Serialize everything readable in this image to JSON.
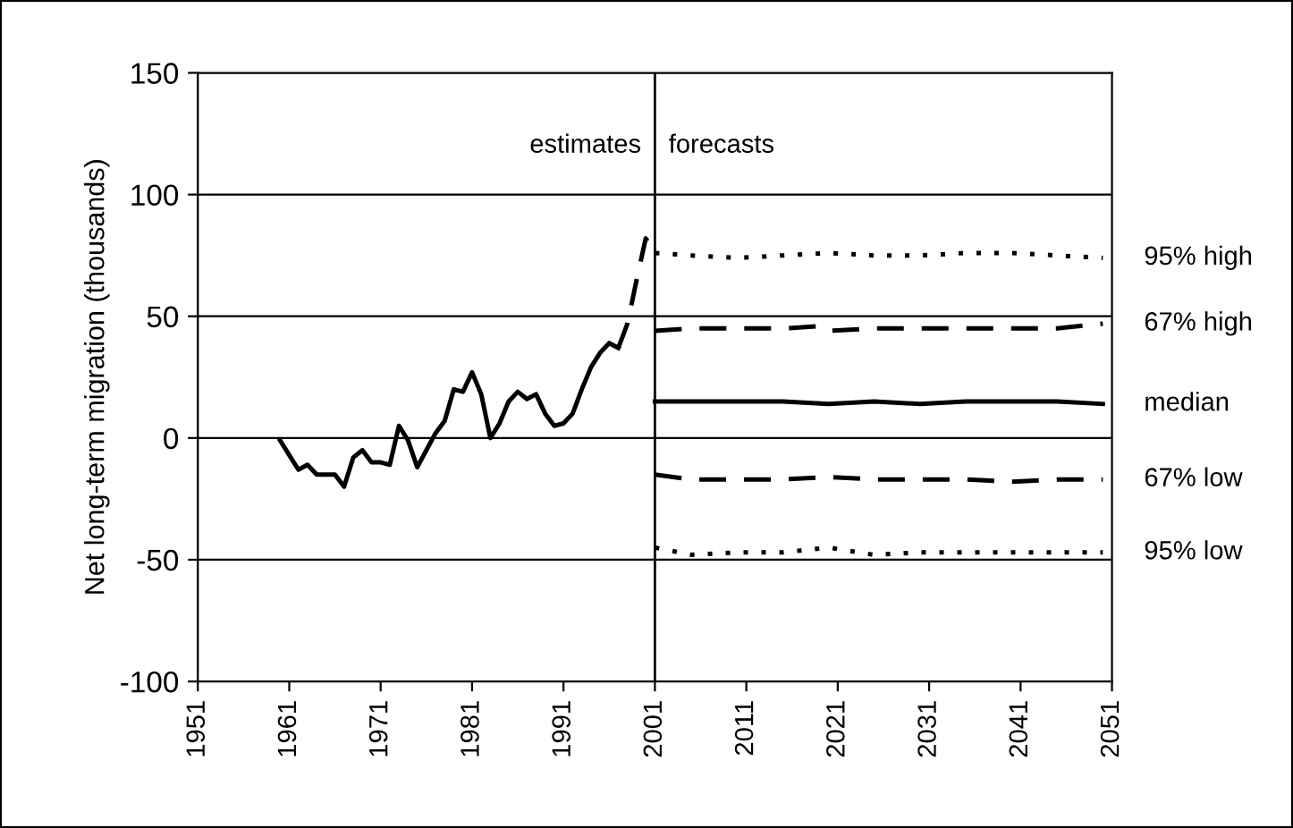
{
  "chart_data": {
    "type": "line",
    "ylabel": "Net long-term migration (thousands)",
    "xlim": [
      1951,
      2051
    ],
    "xticks": [
      1951,
      1961,
      1971,
      1981,
      1991,
      2001,
      2011,
      2021,
      2031,
      2041,
      2051
    ],
    "ylim": [
      -100,
      150
    ],
    "yticks": [
      -100,
      -50,
      0,
      50,
      100,
      150
    ],
    "grid": "y",
    "marker": "none",
    "ref_lines": [
      {
        "axis": "x",
        "value": 2001,
        "label": null,
        "color": "#000000"
      }
    ],
    "annotations": [
      "estimates",
      "forecasts"
    ],
    "series": [
      {
        "color": "#000000",
        "line_style": "solid",
        "x": [
          1960,
          1961,
          1962,
          1963,
          1964,
          1965,
          1966,
          1967,
          1968,
          1969,
          1970,
          1971,
          1972,
          1973,
          1974,
          1975,
          1976,
          1977,
          1978,
          1979,
          1980,
          1981,
          1982,
          1983,
          1984,
          1985,
          1986,
          1987,
          1988,
          1989,
          1990,
          1991,
          1992,
          1993,
          1994,
          1995,
          1996,
          1997
        ],
        "values": [
          -1,
          -7,
          -13,
          -11,
          -15,
          -15,
          -15,
          -20,
          -8,
          -5,
          -10,
          -10,
          -11,
          5,
          -1,
          -12,
          -5,
          2,
          7,
          20,
          19,
          27,
          18,
          0,
          6,
          15,
          19,
          16,
          18,
          10,
          5,
          6,
          10,
          20,
          29,
          35,
          39,
          37
        ]
      },
      {
        "color": "#000000",
        "line_style": "dashed",
        "x": [
          1997,
          1998,
          1999,
          2000,
          2001
        ],
        "values": [
          37,
          47,
          65,
          82,
          76
        ]
      },
      {
        "name": "95% high",
        "color": "#000000",
        "line_style": "dotted",
        "x": [
          2001,
          2005,
          2010,
          2015,
          2020,
          2025,
          2030,
          2035,
          2040,
          2045,
          2050
        ],
        "values": [
          76,
          75,
          74,
          75,
          76,
          75,
          75,
          76,
          76,
          75,
          74
        ]
      },
      {
        "name": "67% high",
        "color": "#000000",
        "line_style": "dashed",
        "x": [
          2001,
          2005,
          2010,
          2015,
          2019,
          2020,
          2025,
          2030,
          2035,
          2040,
          2045,
          2050
        ],
        "values": [
          44,
          45,
          45,
          45,
          46,
          44,
          45,
          45,
          45,
          45,
          45,
          47
        ]
      },
      {
        "name": "median",
        "color": "#000000",
        "line_style": "solid",
        "x": [
          2001,
          2005,
          2010,
          2015,
          2020,
          2025,
          2030,
          2035,
          2040,
          2045,
          2050
        ],
        "values": [
          15,
          15,
          15,
          15,
          14,
          15,
          14,
          15,
          15,
          15,
          14
        ]
      },
      {
        "name": "67% low",
        "color": "#000000",
        "line_style": "dashed",
        "x": [
          2001,
          2005,
          2010,
          2015,
          2020,
          2025,
          2030,
          2035,
          2040,
          2045,
          2050
        ],
        "values": [
          -15,
          -17,
          -17,
          -17,
          -16,
          -17,
          -17,
          -17,
          -18,
          -17,
          -17
        ]
      },
      {
        "name": "95% low",
        "color": "#000000",
        "line_style": "dotted",
        "x": [
          2001,
          2005,
          2010,
          2015,
          2020,
          2025,
          2030,
          2035,
          2040,
          2045,
          2050
        ],
        "values": [
          -45,
          -48,
          -47,
          -47,
          -45,
          -48,
          -47,
          -47,
          -47,
          -47,
          -47
        ]
      }
    ]
  }
}
